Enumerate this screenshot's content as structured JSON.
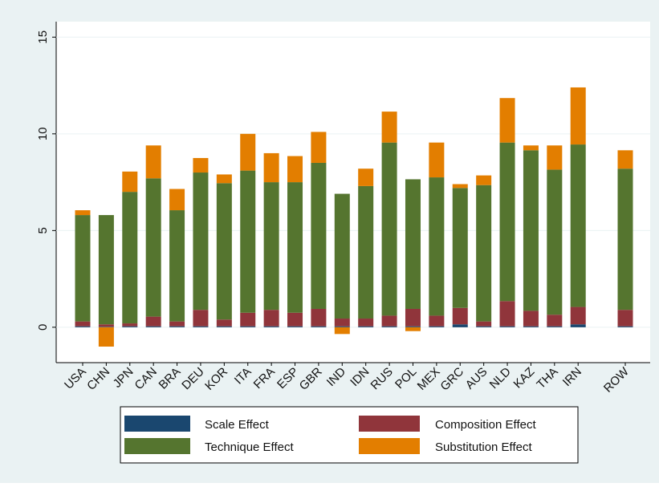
{
  "chart_data": {
    "type": "stacked_bar",
    "categories": [
      "USA",
      "CHN",
      "JPN",
      "CAN",
      "BRA",
      "DEU",
      "KOR",
      "ITA",
      "FRA",
      "ESP",
      "GBR",
      "IND",
      "IDN",
      "RUS",
      "POL",
      "MEX",
      "GRC",
      "AUS",
      "NLD",
      "KAZ",
      "THA",
      "IRN",
      null,
      "ROW"
    ],
    "series": [
      {
        "name": "Scale Effect",
        "color": "#1a476f",
        "values": [
          0.05,
          0.03,
          0.05,
          0.05,
          0.05,
          0.05,
          0.05,
          0.05,
          0.05,
          0.05,
          0.05,
          0.05,
          0.05,
          0.05,
          0.05,
          0.05,
          0.15,
          0.05,
          0.05,
          0.05,
          0.05,
          0.15,
          null,
          0.05
        ]
      },
      {
        "name": "Composition Effect",
        "color": "#90353b",
        "values": [
          0.25,
          0.12,
          0.15,
          0.5,
          0.25,
          0.85,
          0.35,
          0.7,
          0.85,
          0.7,
          0.9,
          0.4,
          0.4,
          0.55,
          0.9,
          0.55,
          0.85,
          0.25,
          1.3,
          0.8,
          0.6,
          0.9,
          null,
          0.85
        ]
      },
      {
        "name": "Technique Effect",
        "color": "#55752f",
        "values": [
          5.5,
          5.65,
          6.8,
          7.15,
          5.75,
          7.1,
          7.05,
          7.35,
          6.6,
          6.75,
          7.55,
          6.45,
          6.85,
          8.95,
          6.7,
          7.15,
          6.2,
          7.05,
          8.2,
          8.3,
          7.5,
          8.4,
          null,
          7.3
        ]
      },
      {
        "name": "Substitution Effect",
        "color": "#e37e00",
        "values": [
          0.25,
          -1.0,
          1.05,
          1.7,
          1.1,
          0.75,
          0.45,
          1.9,
          1.5,
          1.35,
          1.6,
          -0.35,
          0.9,
          1.6,
          -0.2,
          1.8,
          0.2,
          0.5,
          2.3,
          0.25,
          1.25,
          2.95,
          null,
          0.95
        ]
      }
    ],
    "ylim": [
      -1.83,
      15.8
    ],
    "yticks": [
      0,
      5,
      10,
      15
    ],
    "grid": true,
    "legend": "bottom"
  }
}
